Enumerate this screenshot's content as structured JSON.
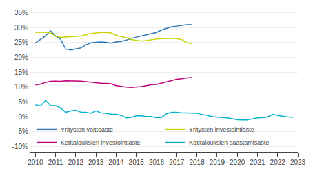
{
  "chart_data": {
    "type": "line",
    "series": [
      {
        "name": "Yritysten voittoaste",
        "color": "#2e75b6",
        "x": [
          2010,
          2010.25,
          2010.5,
          2010.75,
          2011,
          2011.25,
          2011.5,
          2011.75,
          2012,
          2012.25,
          2012.5,
          2012.75,
          2013,
          2013.25,
          2013.5,
          2013.75,
          2014,
          2014.25,
          2014.5,
          2014.75,
          2015,
          2015.25,
          2015.5,
          2015.75,
          2016,
          2016.25,
          2016.5,
          2016.75,
          2017,
          2017.25,
          2017.5,
          2017.75
        ],
        "values": [
          0.249,
          0.26,
          0.272,
          0.289,
          0.272,
          0.261,
          0.228,
          0.225,
          0.228,
          0.232,
          0.242,
          0.249,
          0.251,
          0.252,
          0.251,
          0.248,
          0.252,
          0.254,
          0.258,
          0.264,
          0.268,
          0.272,
          0.276,
          0.28,
          0.284,
          0.292,
          0.298,
          0.303,
          0.305,
          0.308,
          0.31,
          0.31
        ]
      },
      {
        "name": "Yritysten investointiaste",
        "color": "#c8d400",
        "x": [
          2010,
          2010.25,
          2010.5,
          2010.75,
          2011,
          2011.25,
          2011.5,
          2011.75,
          2012,
          2012.25,
          2012.5,
          2012.75,
          2013,
          2013.25,
          2013.5,
          2013.75,
          2014,
          2014.25,
          2014.5,
          2014.75,
          2015,
          2015.25,
          2015.5,
          2015.75,
          2016,
          2016.25,
          2016.5,
          2016.75,
          2017,
          2017.25,
          2017.5,
          2017.75
        ],
        "values": [
          0.284,
          0.285,
          0.285,
          0.282,
          0.272,
          0.267,
          0.268,
          0.27,
          0.271,
          0.272,
          0.276,
          0.28,
          0.282,
          0.284,
          0.284,
          0.282,
          0.274,
          0.27,
          0.266,
          0.26,
          0.257,
          0.255,
          0.257,
          0.26,
          0.262,
          0.263,
          0.264,
          0.264,
          0.263,
          0.26,
          0.25,
          0.247
        ]
      },
      {
        "name": "Kotitalouksien investointiaste",
        "color": "#c0007a",
        "x": [
          2010,
          2010.25,
          2010.5,
          2010.75,
          2011,
          2011.25,
          2011.5,
          2011.75,
          2012,
          2012.25,
          2012.5,
          2012.75,
          2013,
          2013.25,
          2013.5,
          2013.75,
          2014,
          2014.25,
          2014.5,
          2014.75,
          2015,
          2015.25,
          2015.5,
          2015.75,
          2016,
          2016.25,
          2016.5,
          2016.75,
          2017,
          2017.25,
          2017.5,
          2017.75
        ],
        "values": [
          0.107,
          0.11,
          0.116,
          0.119,
          0.12,
          0.119,
          0.121,
          0.121,
          0.121,
          0.12,
          0.118,
          0.116,
          0.115,
          0.113,
          0.112,
          0.111,
          0.105,
          0.102,
          0.1,
          0.099,
          0.1,
          0.102,
          0.105,
          0.108,
          0.109,
          0.113,
          0.118,
          0.122,
          0.126,
          0.128,
          0.131,
          0.132
        ]
      },
      {
        "name": "Kotitalouksien säästämisaste",
        "color": "#00b2cc",
        "x": [
          2010,
          2010.25,
          2010.5,
          2010.75,
          2011,
          2011.25,
          2011.5,
          2011.75,
          2012,
          2012.25,
          2012.5,
          2012.75,
          2013,
          2013.25,
          2013.5,
          2013.75,
          2014,
          2014.25,
          2014.5,
          2014.75,
          2015,
          2015.25,
          2015.5,
          2015.75,
          2016,
          2016.25,
          2016.5,
          2016.75,
          2017,
          2017.25,
          2017.5,
          2017.75,
          2018,
          2018.25,
          2018.5,
          2018.75,
          2019,
          2019.25,
          2019.5,
          2019.75,
          2020,
          2020.25,
          2020.5,
          2020.75,
          2021,
          2021.25,
          2021.5,
          2021.75,
          2022,
          2022.25,
          2022.5,
          2022.75
        ],
        "values": [
          0.04,
          0.036,
          0.055,
          0.038,
          0.037,
          0.03,
          0.015,
          0.02,
          0.022,
          0.016,
          0.015,
          0.012,
          0.02,
          0.013,
          0.012,
          0.009,
          0.008,
          0.005,
          -0.004,
          -0.002,
          0.003,
          0.003,
          0.001,
          0.001,
          -0.003,
          -0.002,
          0.01,
          0.015,
          0.015,
          0.013,
          0.013,
          0.012,
          0.012,
          0.008,
          0.005,
          0.0,
          -0.001,
          -0.003,
          -0.004,
          -0.007,
          -0.01,
          -0.011,
          -0.011,
          -0.007,
          -0.004,
          -0.003,
          -0.001,
          0.008,
          0.004,
          0.002,
          -0.001,
          -0.003
        ]
      }
    ],
    "xlim": [
      2009.75,
      2023.0
    ],
    "xticks": [
      2010,
      2011,
      2012,
      2013,
      2014,
      2015,
      2016,
      2017,
      2018,
      2019,
      2020,
      2021,
      2022,
      2023
    ],
    "ylim": [
      -0.12,
      0.37
    ],
    "yticks": [
      {
        "value": -0.1,
        "label": "-10%"
      },
      {
        "value": -0.05,
        "label": "-5%"
      },
      {
        "value": 0.0,
        "label": "0%"
      },
      {
        "value": 0.05,
        "label": "5%"
      },
      {
        "value": 0.1,
        "label": "10%"
      },
      {
        "value": 0.15,
        "label": "15%"
      },
      {
        "value": 0.2,
        "label": "20%"
      },
      {
        "value": 0.25,
        "label": "25%"
      },
      {
        "value": 0.3,
        "label": "30%"
      },
      {
        "value": 0.35,
        "label": "35%"
      }
    ],
    "grid": true,
    "legend": "lower left"
  }
}
